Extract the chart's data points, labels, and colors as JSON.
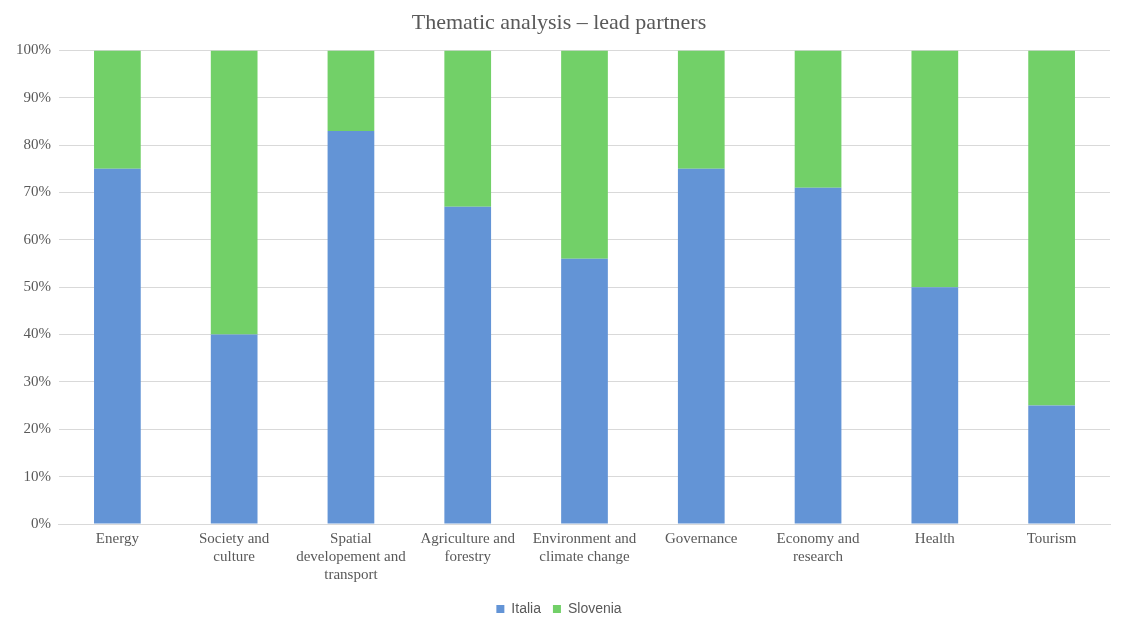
{
  "chart_data": {
    "type": "bar",
    "title": "Thematic analysis – lead partners",
    "categories": [
      "Energy",
      "Society and culture",
      "Spatial developement and transport",
      "Agriculture and forestry",
      "Environment and climate change",
      "Governance",
      "Economy and research",
      "Health",
      "Tourism"
    ],
    "stacked": true,
    "series": [
      {
        "name": "Italia",
        "color": "#6394d6",
        "values": [
          75,
          40,
          83,
          67,
          56,
          75,
          71,
          50,
          25
        ]
      },
      {
        "name": "Slovenia",
        "color": "#72d068",
        "values": [
          25,
          60,
          17,
          33,
          44,
          25,
          29,
          50,
          75
        ]
      }
    ],
    "ylim": [
      0,
      100
    ],
    "yticks": [
      {
        "value": 0,
        "label": "0%"
      },
      {
        "value": 10,
        "label": "10%"
      },
      {
        "value": 20,
        "label": "20%"
      },
      {
        "value": 30,
        "label": "30%"
      },
      {
        "value": 40,
        "label": "40%"
      },
      {
        "value": 50,
        "label": "50%"
      },
      {
        "value": 60,
        "label": "60%"
      },
      {
        "value": 70,
        "label": "70%"
      },
      {
        "value": 80,
        "label": "80%"
      },
      {
        "value": 90,
        "label": "90%"
      },
      {
        "value": 100,
        "label": "100%"
      }
    ],
    "grid": "y",
    "legend": "bottom"
  }
}
